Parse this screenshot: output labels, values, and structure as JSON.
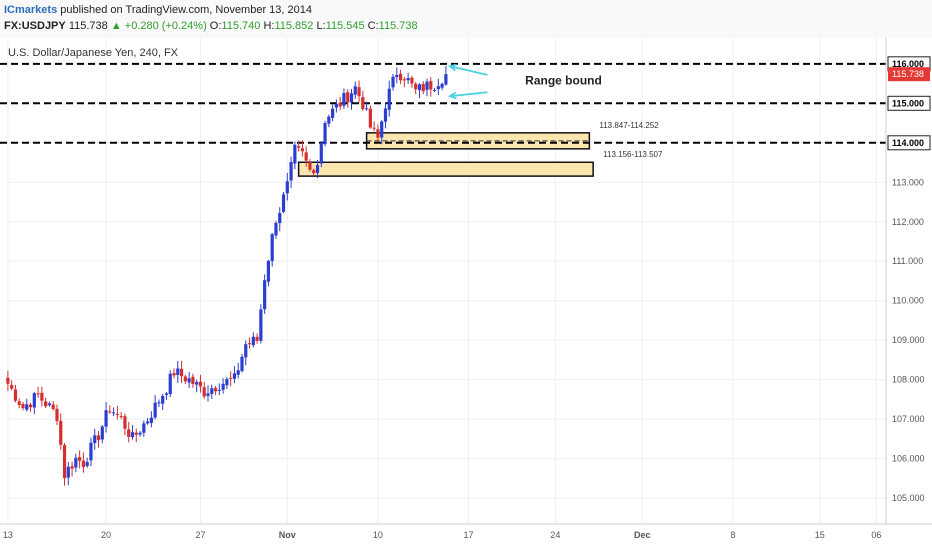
{
  "header": {
    "publisher": "ICmarkets",
    "published_text": "published on TradingView.com, November 13, 2014",
    "symbol": "FX:USDJPY",
    "last": "115.738",
    "change": "+0.280 (+0.24%)",
    "open_label": "O:",
    "open": "115.740",
    "high_label": "H:",
    "high": "115.852",
    "low_label": "L:",
    "low": "115.545",
    "close_label": "C:",
    "close": "115.738"
  },
  "chart_data": {
    "type": "candlestick",
    "title": "U.S. Dollar/Japanese Yen, 240, FX",
    "y_range": [
      104.75,
      116.35
    ],
    "y_ticks": [
      105,
      106,
      107,
      108,
      109,
      110,
      111,
      112,
      113,
      114,
      115,
      116
    ],
    "y_tick_labels": [
      "105.000",
      "106.000",
      "107.000",
      "108.000",
      "109.000",
      "110.000",
      "111.000",
      "112.000",
      "113.000",
      "114.000",
      "115.000",
      "116.000"
    ],
    "x_ticks": [
      {
        "label": "13",
        "bar": 0
      },
      {
        "label": "20",
        "bar": 26
      },
      {
        "label": "27",
        "bar": 51
      },
      {
        "label": "Nov",
        "bar": 74
      },
      {
        "label": "10",
        "bar": 98
      },
      {
        "label": "17",
        "bar": 122
      },
      {
        "label": "24",
        "bar": 145
      },
      {
        "label": "Dec",
        "bar": 168
      },
      {
        "label": "8",
        "bar": 192
      },
      {
        "label": "15",
        "bar": 215
      },
      {
        "label": "06",
        "bar": 230
      }
    ],
    "bar_count_axis": 232,
    "last_price": 115.738,
    "last_price_label": "115.738",
    "last_price_color": "#e53935",
    "up_color": "#2b3ecf",
    "down_color": "#d32f2f",
    "dashed_levels": [
      {
        "price": 116.0,
        "label": "116.000"
      },
      {
        "price": 115.0,
        "label": "115.000"
      },
      {
        "price": 114.0,
        "label": "114.000"
      }
    ],
    "zones": [
      {
        "from_bar": 95,
        "to_bar": 154,
        "low": 113.847,
        "high": 114.252,
        "label": "113.847-114.252",
        "mid_dashed": true
      },
      {
        "from_bar": 77,
        "to_bar": 155,
        "low": 113.156,
        "high": 113.507,
        "label": "113.156-113.507",
        "mid_dashed": false
      }
    ],
    "zone_fill": "#fbe6b0",
    "annotation": {
      "text": "Range bound",
      "color": "#4dd0e1"
    },
    "anchors": [
      {
        "bar": 0,
        "price": 107.9
      },
      {
        "bar": 4,
        "price": 107.3
      },
      {
        "bar": 8,
        "price": 107.6
      },
      {
        "bar": 13,
        "price": 107.1
      },
      {
        "bar": 15,
        "price": 105.6
      },
      {
        "bar": 18,
        "price": 106.0
      },
      {
        "bar": 20,
        "price": 105.9
      },
      {
        "bar": 24,
        "price": 106.6
      },
      {
        "bar": 27,
        "price": 107.3
      },
      {
        "bar": 30,
        "price": 107.0
      },
      {
        "bar": 33,
        "price": 106.5
      },
      {
        "bar": 37,
        "price": 107.0
      },
      {
        "bar": 42,
        "price": 107.8
      },
      {
        "bar": 44,
        "price": 108.2
      },
      {
        "bar": 48,
        "price": 108.0
      },
      {
        "bar": 52,
        "price": 107.7
      },
      {
        "bar": 56,
        "price": 107.9
      },
      {
        "bar": 60,
        "price": 108.0
      },
      {
        "bar": 63,
        "price": 108.9
      },
      {
        "bar": 66,
        "price": 109.0
      },
      {
        "bar": 68,
        "price": 110.6
      },
      {
        "bar": 71,
        "price": 112.1
      },
      {
        "bar": 72,
        "price": 112.3
      },
      {
        "bar": 74,
        "price": 112.9
      },
      {
        "bar": 76,
        "price": 113.8
      },
      {
        "bar": 78,
        "price": 113.7
      },
      {
        "bar": 80,
        "price": 113.3
      },
      {
        "bar": 82,
        "price": 113.5
      },
      {
        "bar": 84,
        "price": 114.6
      },
      {
        "bar": 87,
        "price": 114.9
      },
      {
        "bar": 90,
        "price": 115.2
      },
      {
        "bar": 92,
        "price": 115.4
      },
      {
        "bar": 94,
        "price": 115.0
      },
      {
        "bar": 96,
        "price": 114.4
      },
      {
        "bar": 98,
        "price": 114.1
      },
      {
        "bar": 100,
        "price": 115.0
      },
      {
        "bar": 103,
        "price": 115.8
      },
      {
        "bar": 105,
        "price": 115.7
      },
      {
        "bar": 108,
        "price": 115.3
      },
      {
        "bar": 110,
        "price": 115.4
      },
      {
        "bar": 113,
        "price": 115.5
      },
      {
        "bar": 116,
        "price": 115.74
      }
    ]
  }
}
